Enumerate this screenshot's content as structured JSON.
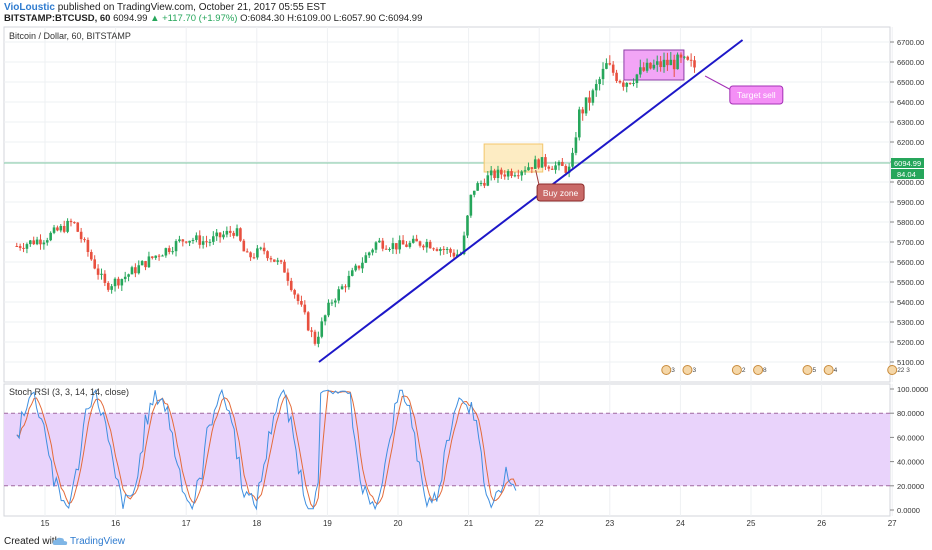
{
  "header": {
    "author": "VioLoustic",
    "published_text": "published on TradingView.com, October 21, 2017 05:55 EST",
    "symbol": "BITSTAMP:BTCUSD, 60",
    "last": "6094.99",
    "change": "+117.70 (+1.97%)",
    "open": "O:6084.30",
    "high": "H:6109.00",
    "low": "L:6057.90",
    "close": "C:6094.99",
    "up_arrow": "▲"
  },
  "footer": {
    "created_with": "Created with",
    "brand": "TradingView"
  },
  "colors": {
    "up": "#26a65b",
    "down": "#e8503f",
    "trend": "#1d17c8",
    "buy_zone": "#fde9b8",
    "target_zone": "#f19bf5",
    "rsi_band": "#e9d3fb",
    "k_line": "#3f8fe0",
    "d_line": "#e46b3a"
  },
  "chart_data": [
    {
      "type": "candlestick",
      "title": "Bitcoin / Dollar, 60, BITSTAMP",
      "ylim": [
        5030,
        6770
      ],
      "y_ticks": [
        "6700.00",
        "6600.00",
        "6500.00",
        "6400.00",
        "6300.00",
        "6200.00",
        "6100.00",
        "6000.00",
        "5900.00",
        "5800.00",
        "5700.00",
        "5600.00",
        "5500.00",
        "5400.00",
        "5300.00",
        "5200.00",
        "5100.00"
      ],
      "x_ticks": [
        "15",
        "16",
        "17",
        "18",
        "19",
        "20",
        "21",
        "22",
        "23",
        "24",
        "25",
        "26",
        "27"
      ],
      "last_price_label": "6094.99",
      "second_label": "84.04",
      "trend_line": {
        "from": {
          "day": 18.88,
          "price": 5100
        },
        "to": {
          "day": 24.88,
          "price": 6710
        }
      },
      "zones": [
        {
          "name": "buy-zone",
          "label": "Buy zone",
          "day_from": 21.22,
          "day_to": 22.05,
          "price_from": 6050,
          "price_to": 6190
        },
        {
          "name": "target-zone",
          "label": "Target sell",
          "day_from": 23.2,
          "day_to": 24.05,
          "price_from": 6510,
          "price_to": 6660
        }
      ],
      "event_markers": [
        "3",
        "3",
        "2",
        "8",
        "5",
        "4",
        "22 3"
      ]
    },
    {
      "type": "line",
      "title": "Stoch RSI (3, 3, 14, 14, close)",
      "ylim": [
        -5,
        105
      ],
      "y_ticks": [
        "100.0000",
        "80.0000",
        "60.0000",
        "40.0000",
        "20.0000",
        "0.0000"
      ],
      "band": [
        20,
        80
      ]
    }
  ]
}
